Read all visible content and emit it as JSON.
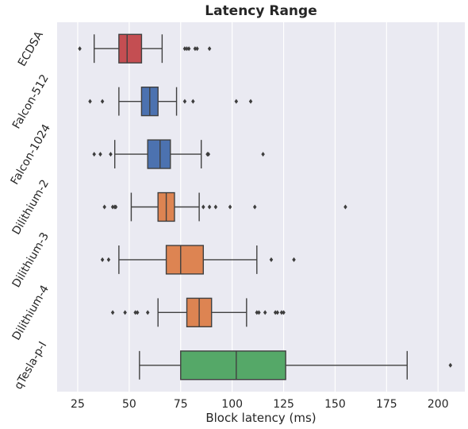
{
  "chart_data": {
    "type": "boxplot",
    "orientation": "horizontal",
    "title": "Latency Range",
    "xlabel": "Block latency (ms)",
    "ylabel": "",
    "xlim": [
      15,
      213
    ],
    "xticks": [
      25,
      50,
      75,
      100,
      125,
      150,
      175,
      200
    ],
    "grid": true,
    "background": "#EAEAF2",
    "series": [
      {
        "name": "ECDSA",
        "color": "#C44E52",
        "whisker_low": 33,
        "q1": 45,
        "median": 49,
        "q3": 56,
        "whisker_high": 66,
        "outliers": [
          26,
          77,
          78,
          79,
          82,
          83,
          89
        ]
      },
      {
        "name": "Falcon-512",
        "color": "#4C72B0",
        "whisker_low": 45,
        "q1": 56,
        "median": 60,
        "q3": 64,
        "whisker_high": 73,
        "outliers": [
          31,
          37,
          77,
          81,
          102,
          109
        ]
      },
      {
        "name": "Falcon-1024",
        "color": "#4C72B0",
        "whisker_low": 43,
        "q1": 59,
        "median": 65,
        "q3": 70,
        "whisker_high": 85,
        "outliers": [
          33,
          36,
          41,
          88,
          88.5,
          115
        ]
      },
      {
        "name": "Dilithium-2",
        "color": "#DD8452",
        "whisker_low": 51,
        "q1": 64,
        "median": 68,
        "q3": 72,
        "whisker_high": 84,
        "outliers": [
          38,
          42,
          43,
          43.5,
          86,
          89,
          92,
          99,
          111,
          155
        ]
      },
      {
        "name": "Dilithium-3",
        "color": "#DD8452",
        "whisker_low": 45,
        "q1": 68,
        "median": 75,
        "q3": 86,
        "whisker_high": 112,
        "outliers": [
          37,
          40,
          119,
          130
        ]
      },
      {
        "name": "Dilithium-4",
        "color": "#DD8452",
        "whisker_low": 64,
        "q1": 78,
        "median": 84,
        "q3": 90,
        "whisker_high": 107,
        "outliers": [
          42,
          48,
          53,
          54,
          59,
          112,
          113,
          116,
          121,
          122,
          124,
          125
        ]
      },
      {
        "name": "qTesla-p-I",
        "color": "#55A868",
        "whisker_low": 55,
        "q1": 75,
        "median": 102,
        "q3": 126,
        "whisker_high": 185,
        "outliers": [
          206
        ]
      }
    ]
  }
}
